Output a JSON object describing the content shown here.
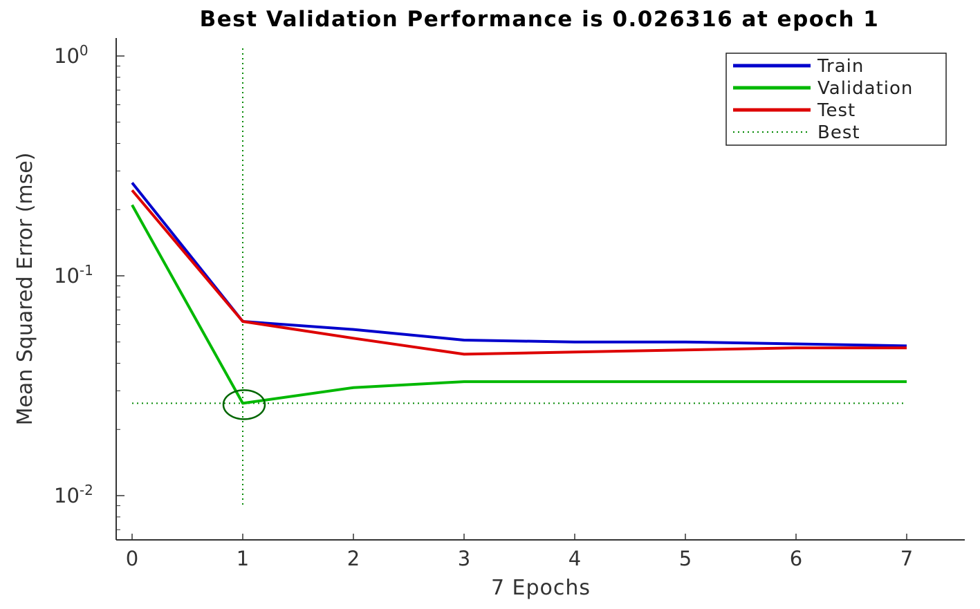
{
  "chart_data": {
    "type": "line",
    "title": "Best Validation Performance is 0.026316 at epoch 1",
    "xlabel": "7 Epochs",
    "ylabel": "Mean Squared Error  (mse)",
    "x": [
      0,
      1,
      2,
      3,
      4,
      5,
      6,
      7
    ],
    "x_ticks": [
      "0",
      "1",
      "2",
      "3",
      "4",
      "5",
      "6",
      "7"
    ],
    "y_scale": "log",
    "ylim": [
      0.0065,
      1.2
    ],
    "y_ticks": [
      {
        "value": 1,
        "base": "10",
        "exp": "0"
      },
      {
        "value": 0.1,
        "base": "10",
        "exp": "-1"
      },
      {
        "value": 0.01,
        "base": "10",
        "exp": "-2"
      }
    ],
    "series": [
      {
        "name": "Train",
        "color": "#0000cc",
        "values": [
          0.265,
          0.062,
          0.057,
          0.051,
          0.05,
          0.05,
          0.049,
          0.048
        ]
      },
      {
        "name": "Validation",
        "color": "#00b800",
        "values": [
          0.21,
          0.026316,
          0.031,
          0.033,
          0.033,
          0.033,
          0.033,
          0.033
        ]
      },
      {
        "name": "Test",
        "color": "#dd0000",
        "values": [
          0.245,
          0.062,
          0.052,
          0.044,
          0.045,
          0.046,
          0.047,
          0.047
        ]
      }
    ],
    "best": {
      "name": "Best",
      "epoch": 1,
      "value": 0.026316,
      "color": "#008800"
    },
    "legend_position": "top-right",
    "grid": false
  }
}
